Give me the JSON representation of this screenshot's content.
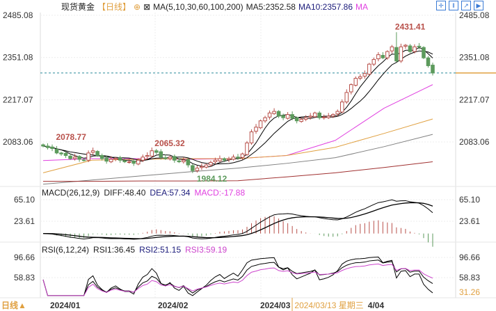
{
  "header": {
    "instrument": "现货黄金",
    "period": "【日线】",
    "ma_spec": "MA(5,10,30,60,100,200)",
    "ma5": "MA5:2352.58",
    "ma10": "MA10:2357.86",
    "ma_more": "MA",
    "icons": [
      "crosshair-icon",
      "bars-icon",
      "zoom-in-icon",
      "next-icon"
    ]
  },
  "macd_header": {
    "spec": "MACD(26,12,9)",
    "diff": "DIFF:48.40",
    "dea": "DEA:57.34",
    "macd": "MACD:-17.88"
  },
  "rsi_header": {
    "spec": "RSI(6,12,24)",
    "rsi1": "RSI1:36.45",
    "rsi2": "RSI2:51.15",
    "rsi3": "RSI3:59.19"
  },
  "footer": {
    "period_button": "日线▲",
    "dates": [
      "2024/01",
      "2024/02",
      "2024/03"
    ],
    "cursor_date": "2024/03/13 星期三",
    "last_date": "4/04"
  },
  "colors": {
    "up": "#b8504a",
    "down": "#5c9a5c",
    "ma5": "#000000",
    "ma10": "#000000",
    "ma30": "#e040e0",
    "ma60": "#e0a040",
    "ma100": "#808080",
    "ma200": "#a03030",
    "rsi3": "#cc44cc",
    "dea": "#1a1a7a",
    "cursor": "#e0a040",
    "price_line": "#2a8a9a"
  },
  "chart_data": [
    {
      "type": "candlestick",
      "title": "现货黄金",
      "yticks": [
        2485.08,
        2351.08,
        2217.07,
        2083.06
      ],
      "ylim": [
        1945,
        2492
      ],
      "annotations": {
        "high": "2431.41",
        "low": "1984.12",
        "label1": "2078.77",
        "label2": "2065.32"
      },
      "last_price": 2302,
      "closes": [
        2070,
        2065,
        2062,
        2048,
        2045,
        2040,
        2030,
        2035,
        2028,
        2025,
        2048,
        2055,
        2040,
        2030,
        2022,
        2028,
        2031,
        2025,
        2020,
        2020,
        2015,
        2025,
        2035,
        2040,
        2055,
        2050,
        2035,
        2030,
        2035,
        2025,
        2020,
        2025,
        2010,
        1992,
        2000,
        2005,
        2010,
        2018,
        2025,
        2030,
        2025,
        2030,
        2035,
        2032,
        2045,
        2080,
        2115,
        2130,
        2150,
        2160,
        2175,
        2180,
        2165,
        2160,
        2170,
        2158,
        2150,
        2155,
        2160,
        2165,
        2175,
        2160,
        2162,
        2165,
        2170,
        2180,
        2210,
        2240,
        2265,
        2285,
        2290,
        2300,
        2330,
        2345,
        2360,
        2350,
        2370,
        2385,
        2340,
        2385,
        2390,
        2370,
        2385,
        2385,
        2350,
        2325,
        2302
      ],
      "ma_series_sampled": {
        "ma30": [
          2024,
          2030,
          2030,
          2028,
          2030,
          2040,
          2088,
          2190,
          2265
        ],
        "ma60": [
          1985,
          2025,
          2028,
          2030,
          2030,
          2040,
          2066,
          2110,
          2156
        ],
        "ma100": [
          1949,
          1962,
          1975,
          1988,
          2000,
          2015,
          2033,
          2068,
          2107
        ],
        "ma200": [
          1958,
          1958,
          1959,
          1959,
          1960,
          1972,
          1985,
          2002,
          2020
        ]
      }
    },
    {
      "type": "macd",
      "yticks": [
        65.1,
        23.61
      ],
      "ylim": [
        -20,
        80
      ]
    },
    {
      "type": "line",
      "name": "RSI",
      "yticks": [
        96.66,
        58.83,
        31.26
      ],
      "ylim": [
        20,
        100
      ]
    }
  ]
}
